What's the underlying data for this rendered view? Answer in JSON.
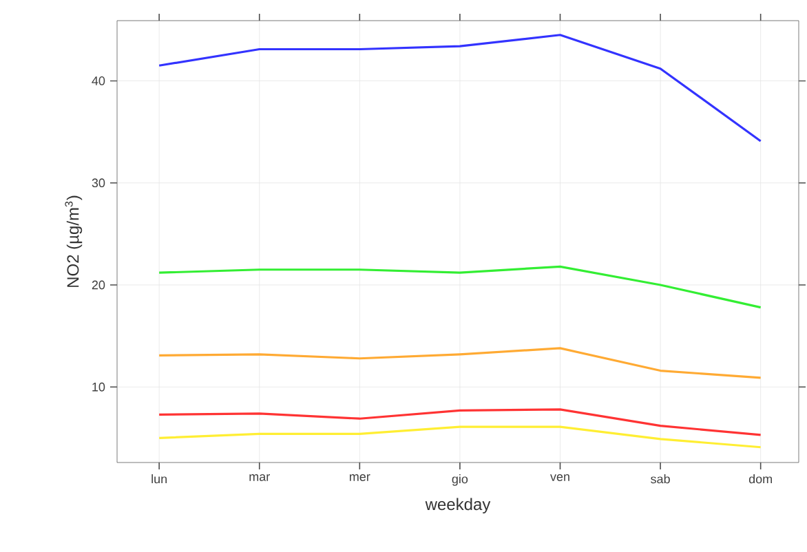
{
  "chart_data": {
    "type": "line",
    "xlabel": "weekday",
    "ylabel": "NO2 (µg/m$^{3}$)",
    "categories": [
      "lun",
      "mar",
      "mer",
      "gio",
      "ven",
      "sab",
      "dom"
    ],
    "series": [
      {
        "color": "#3333ff",
        "values": [
          41.5,
          43.1,
          43.1,
          43.4,
          44.5,
          41.2,
          34.1
        ]
      },
      {
        "color": "#33ee33",
        "values": [
          21.2,
          21.5,
          21.5,
          21.2,
          21.8,
          20.0,
          17.8
        ]
      },
      {
        "color": "#ffaa33",
        "values": [
          13.1,
          13.2,
          12.8,
          13.2,
          13.8,
          11.6,
          10.9
        ]
      },
      {
        "color": "#ff3333",
        "values": [
          7.3,
          7.4,
          6.9,
          7.7,
          7.8,
          6.2,
          5.3
        ]
      },
      {
        "color": "#ffee33",
        "values": [
          5.0,
          5.4,
          5.4,
          6.1,
          6.1,
          4.9,
          4.1
        ]
      }
    ],
    "ylim": [
      2.6,
      45.9
    ],
    "yticks": [
      10,
      20,
      30,
      40
    ],
    "grid": true
  }
}
